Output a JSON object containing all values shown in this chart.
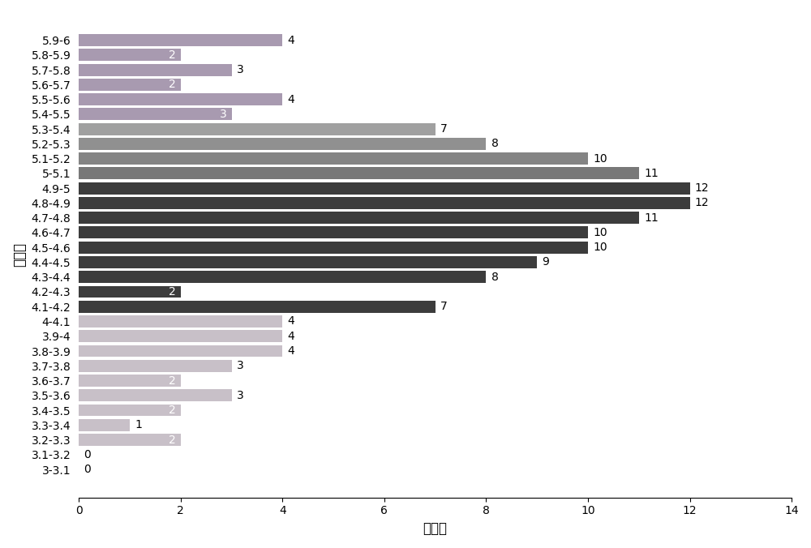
{
  "categories": [
    "5.9-6",
    "5.8-5.9",
    "5.7-5.8",
    "5.6-5.7",
    "5.5-5.6",
    "5.4-5.5",
    "5.3-5.4",
    "5.2-5.3",
    "5.1-5.2",
    "5-5.1",
    "4.9-5",
    "4.8-4.9",
    "4.7-4.8",
    "4.6-4.7",
    "4.5-4.6",
    "4.4-4.5",
    "4.3-4.4",
    "4.2-4.3",
    "4.1-4.2",
    "4-4.1",
    "3.9-4",
    "3.8-3.9",
    "3.7-3.8",
    "3.6-3.7",
    "3.5-3.6",
    "3.4-3.5",
    "3.3-3.4",
    "3.2-3.3",
    "3.1-3.2",
    "3-3.1"
  ],
  "values": [
    4,
    2,
    3,
    2,
    4,
    3,
    7,
    8,
    10,
    11,
    12,
    12,
    11,
    10,
    10,
    9,
    8,
    2,
    7,
    4,
    4,
    4,
    3,
    2,
    3,
    2,
    1,
    2,
    0,
    0
  ],
  "bar_colors": [
    "#a89ab0",
    "#a89ab0",
    "#a89ab0",
    "#a89ab0",
    "#a89ab0",
    "#a89ab0",
    "#a0a0a0",
    "#909090",
    "#848484",
    "#787878",
    "#3c3c3c",
    "#3c3c3c",
    "#3c3c3c",
    "#3c3c3c",
    "#3c3c3c",
    "#3c3c3c",
    "#3c3c3c",
    "#3c3c3c",
    "#3c3c3c",
    "#c8c0c8",
    "#c8c0c8",
    "#c8c0c8",
    "#c8c0c8",
    "#c8c0c8",
    "#c8c0c8",
    "#c8c0c8",
    "#c8c0c8",
    "#c8c0c8",
    "#c8c0c8",
    "#c8c0c8"
  ],
  "label_inside": [
    false,
    true,
    false,
    true,
    false,
    true,
    false,
    false,
    false,
    false,
    false,
    false,
    false,
    false,
    false,
    false,
    false,
    true,
    false,
    false,
    false,
    false,
    false,
    true,
    false,
    true,
    false,
    true,
    false,
    false
  ],
  "xlabel": "样本数",
  "ylabel": "分値段",
  "xlim": [
    0,
    14
  ],
  "xticks": [
    0,
    2,
    4,
    6,
    8,
    10,
    12,
    14
  ],
  "tick_fontsize": 10,
  "label_fontsize": 12
}
